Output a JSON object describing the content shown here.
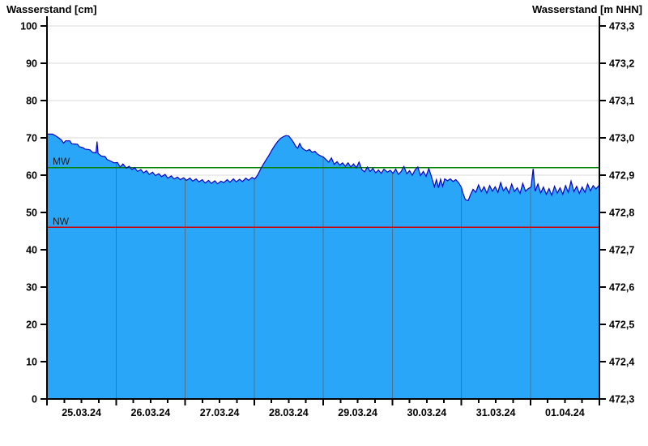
{
  "titles": {
    "left": "Wasserstand [cm]",
    "right": "Wasserstand [m NHN]"
  },
  "reference_lines": [
    {
      "label": "MW",
      "value": 62,
      "color": "#008000"
    },
    {
      "label": "NW",
      "value": 46,
      "color": "#cc0000"
    }
  ],
  "colors": {
    "area_fill": "#2aa6f8",
    "curve_line": "#0000c8",
    "h_gridline": "#d9d9d9",
    "day_separator": "#50708a",
    "axis": "#000000"
  },
  "chart_data": {
    "type": "area",
    "title": "",
    "xlabel": "",
    "ylabel_left": "Wasserstand [cm]",
    "ylabel_right": "Wasserstand [m NHN]",
    "x_tick_labels": [
      "25.03.24",
      "26.03.24",
      "27.03.24",
      "28.03.24",
      "29.03.24",
      "30.03.24",
      "31.03.24",
      "01.04.24"
    ],
    "x_days_total": 8,
    "x_minor_ticks_per_day": 4,
    "ylim_left": [
      0,
      100
    ],
    "y_left_ticks": [
      0,
      10,
      20,
      30,
      40,
      50,
      60,
      70,
      80,
      90,
      100
    ],
    "ylim_right": [
      472.3,
      473.3
    ],
    "y_right_tick_labels": [
      "472,3",
      "472,4",
      "472,5",
      "472,6",
      "472,7",
      "472,8",
      "472,9",
      "473,0",
      "473,1",
      "473,2",
      "473,3"
    ],
    "grid": "horizontal-light, vertical day separators over area only",
    "legend": "none",
    "series": [
      {
        "name": "Wasserstand",
        "unit": "cm",
        "points_days_value": [
          [
            0.0,
            71.0
          ],
          [
            0.08,
            71.0
          ],
          [
            0.12,
            70.6
          ],
          [
            0.17,
            70.0
          ],
          [
            0.21,
            69.4
          ],
          [
            0.24,
            68.6
          ],
          [
            0.27,
            69.2
          ],
          [
            0.33,
            69.2
          ],
          [
            0.36,
            68.4
          ],
          [
            0.44,
            68.3
          ],
          [
            0.47,
            67.6
          ],
          [
            0.52,
            67.4
          ],
          [
            0.55,
            67.0
          ],
          [
            0.62,
            66.8
          ],
          [
            0.66,
            66.1
          ],
          [
            0.71,
            66.0
          ],
          [
            0.725,
            69.0
          ],
          [
            0.74,
            65.8
          ],
          [
            0.79,
            65.1
          ],
          [
            0.84,
            65.0
          ],
          [
            0.87,
            64.2
          ],
          [
            0.92,
            63.8
          ],
          [
            0.97,
            63.3
          ],
          [
            1.02,
            63.4
          ],
          [
            1.06,
            62.2
          ],
          [
            1.1,
            63.0
          ],
          [
            1.15,
            61.9
          ],
          [
            1.19,
            62.4
          ],
          [
            1.23,
            61.5
          ],
          [
            1.27,
            62.0
          ],
          [
            1.31,
            61.0
          ],
          [
            1.36,
            61.5
          ],
          [
            1.4,
            60.6
          ],
          [
            1.44,
            61.2
          ],
          [
            1.48,
            60.2
          ],
          [
            1.53,
            60.8
          ],
          [
            1.57,
            59.9
          ],
          [
            1.62,
            60.4
          ],
          [
            1.66,
            59.6
          ],
          [
            1.71,
            60.2
          ],
          [
            1.75,
            59.2
          ],
          [
            1.8,
            59.8
          ],
          [
            1.84,
            59.0
          ],
          [
            1.89,
            59.5
          ],
          [
            1.93,
            58.8
          ],
          [
            1.98,
            59.3
          ],
          [
            2.02,
            58.6
          ],
          [
            2.07,
            59.2
          ],
          [
            2.11,
            58.4
          ],
          [
            2.16,
            59.0
          ],
          [
            2.2,
            58.2
          ],
          [
            2.25,
            58.8
          ],
          [
            2.29,
            57.9
          ],
          [
            2.34,
            58.6
          ],
          [
            2.38,
            57.8
          ],
          [
            2.43,
            58.5
          ],
          [
            2.47,
            57.7
          ],
          [
            2.52,
            58.4
          ],
          [
            2.56,
            58.0
          ],
          [
            2.61,
            58.8
          ],
          [
            2.65,
            58.1
          ],
          [
            2.7,
            59.0
          ],
          [
            2.74,
            58.2
          ],
          [
            2.79,
            58.9
          ],
          [
            2.83,
            58.3
          ],
          [
            2.88,
            59.2
          ],
          [
            2.92,
            58.6
          ],
          [
            2.97,
            59.4
          ],
          [
            3.01,
            59.0
          ],
          [
            3.05,
            60.0
          ],
          [
            3.09,
            61.5
          ],
          [
            3.13,
            62.8
          ],
          [
            3.17,
            64.0
          ],
          [
            3.21,
            65.2
          ],
          [
            3.26,
            66.8
          ],
          [
            3.3,
            68.0
          ],
          [
            3.34,
            69.0
          ],
          [
            3.38,
            69.8
          ],
          [
            3.42,
            70.3
          ],
          [
            3.46,
            70.6
          ],
          [
            3.5,
            70.5
          ],
          [
            3.54,
            69.6
          ],
          [
            3.57,
            68.8
          ],
          [
            3.6,
            67.8
          ],
          [
            3.63,
            67.2
          ],
          [
            3.66,
            68.5
          ],
          [
            3.69,
            67.4
          ],
          [
            3.72,
            66.9
          ],
          [
            3.76,
            66.5
          ],
          [
            3.8,
            66.9
          ],
          [
            3.84,
            66.1
          ],
          [
            3.88,
            66.4
          ],
          [
            3.92,
            65.6
          ],
          [
            3.96,
            65.2
          ],
          [
            4.0,
            64.9
          ],
          [
            4.04,
            64.2
          ],
          [
            4.08,
            63.5
          ],
          [
            4.12,
            64.6
          ],
          [
            4.16,
            62.9
          ],
          [
            4.2,
            63.6
          ],
          [
            4.24,
            62.7
          ],
          [
            4.28,
            63.3
          ],
          [
            4.32,
            62.4
          ],
          [
            4.36,
            63.3
          ],
          [
            4.4,
            62.2
          ],
          [
            4.44,
            63.0
          ],
          [
            4.48,
            62.0
          ],
          [
            4.52,
            63.5
          ],
          [
            4.56,
            61.5
          ],
          [
            4.6,
            60.9
          ],
          [
            4.64,
            62.2
          ],
          [
            4.68,
            61.0
          ],
          [
            4.72,
            61.8
          ],
          [
            4.76,
            60.6
          ],
          [
            4.8,
            61.4
          ],
          [
            4.84,
            60.5
          ],
          [
            4.88,
            61.6
          ],
          [
            4.93,
            60.8
          ],
          [
            4.97,
            61.3
          ],
          [
            5.01,
            60.5
          ],
          [
            5.05,
            61.6
          ],
          [
            5.09,
            60.2
          ],
          [
            5.13,
            61.0
          ],
          [
            5.17,
            62.3
          ],
          [
            5.21,
            60.4
          ],
          [
            5.25,
            61.2
          ],
          [
            5.29,
            60.0
          ],
          [
            5.33,
            61.4
          ],
          [
            5.37,
            62.2
          ],
          [
            5.41,
            59.9
          ],
          [
            5.45,
            61.0
          ],
          [
            5.49,
            59.7
          ],
          [
            5.53,
            61.8
          ],
          [
            5.57,
            59.5
          ],
          [
            5.61,
            56.9
          ],
          [
            5.64,
            58.8
          ],
          [
            5.67,
            56.6
          ],
          [
            5.7,
            58.9
          ],
          [
            5.73,
            57.0
          ],
          [
            5.76,
            59.0
          ],
          [
            5.8,
            58.5
          ],
          [
            5.84,
            59.0
          ],
          [
            5.88,
            58.3
          ],
          [
            5.92,
            58.8
          ],
          [
            5.96,
            58.0
          ],
          [
            6.0,
            56.8
          ],
          [
            6.03,
            54.8
          ],
          [
            6.06,
            53.4
          ],
          [
            6.1,
            53.2
          ],
          [
            6.13,
            54.6
          ],
          [
            6.17,
            56.2
          ],
          [
            6.21,
            55.4
          ],
          [
            6.25,
            57.4
          ],
          [
            6.29,
            55.6
          ],
          [
            6.33,
            56.9
          ],
          [
            6.37,
            55.2
          ],
          [
            6.41,
            57.2
          ],
          [
            6.45,
            55.7
          ],
          [
            6.49,
            56.9
          ],
          [
            6.53,
            55.4
          ],
          [
            6.57,
            58.0
          ],
          [
            6.61,
            55.8
          ],
          [
            6.65,
            56.8
          ],
          [
            6.69,
            55.2
          ],
          [
            6.73,
            57.6
          ],
          [
            6.77,
            55.6
          ],
          [
            6.81,
            56.6
          ],
          [
            6.85,
            55.1
          ],
          [
            6.89,
            57.8
          ],
          [
            6.93,
            55.7
          ],
          [
            6.97,
            56.4
          ],
          [
            7.01,
            56.8
          ],
          [
            7.04,
            61.7
          ],
          [
            7.07,
            55.7
          ],
          [
            7.11,
            57.6
          ],
          [
            7.15,
            55.2
          ],
          [
            7.19,
            56.8
          ],
          [
            7.23,
            54.9
          ],
          [
            7.27,
            56.4
          ],
          [
            7.31,
            54.6
          ],
          [
            7.35,
            57.0
          ],
          [
            7.39,
            55.2
          ],
          [
            7.43,
            56.6
          ],
          [
            7.47,
            54.9
          ],
          [
            7.51,
            57.2
          ],
          [
            7.55,
            55.4
          ],
          [
            7.59,
            58.4
          ],
          [
            7.63,
            55.6
          ],
          [
            7.67,
            57.0
          ],
          [
            7.71,
            55.1
          ],
          [
            7.75,
            56.8
          ],
          [
            7.79,
            55.4
          ],
          [
            7.83,
            57.6
          ],
          [
            7.87,
            55.8
          ],
          [
            7.91,
            57.2
          ],
          [
            7.95,
            56.3
          ],
          [
            8.0,
            57.4
          ]
        ]
      }
    ]
  }
}
